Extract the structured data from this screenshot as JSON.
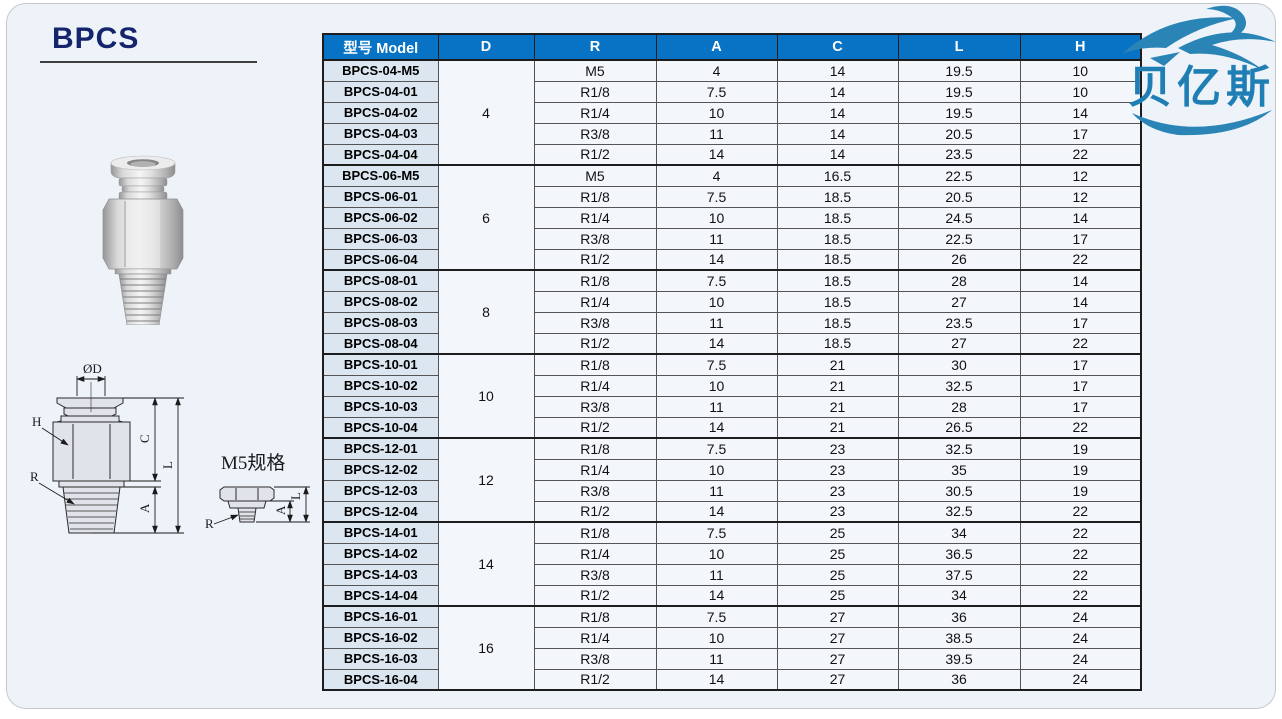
{
  "page_title": "BPCS",
  "logo": {
    "brand_text": "贝亿斯"
  },
  "colors": {
    "panel_bg": "#eef3fa",
    "header_bg": "#0873c4",
    "header_text": "#ffffff",
    "model_col_bg": "#dce6f1",
    "cell_bg": "#f3f7fc",
    "title_color": "#14246d",
    "logo_blue": "#1f7fb4",
    "border_dark": "#1d1d1d",
    "border_thin": "#555555"
  },
  "diagram": {
    "labels": {
      "od": "ØD",
      "h": "H",
      "r": "R",
      "c": "C",
      "l": "L",
      "a": "A"
    },
    "m5": {
      "title": "M5规格",
      "l": "L",
      "a": "A",
      "r": "R"
    }
  },
  "table": {
    "headers": [
      "型号 Model",
      "D",
      "R",
      "A",
      "C",
      "L",
      "H"
    ],
    "groups": [
      {
        "d": "4",
        "rows": [
          {
            "model": "BPCS-04-M5",
            "r": "M5",
            "a": "4",
            "c": "14",
            "l": "19.5",
            "h": "10"
          },
          {
            "model": "BPCS-04-01",
            "r": "R1/8",
            "a": "7.5",
            "c": "14",
            "l": "19.5",
            "h": "10"
          },
          {
            "model": "BPCS-04-02",
            "r": "R1/4",
            "a": "10",
            "c": "14",
            "l": "19.5",
            "h": "14"
          },
          {
            "model": "BPCS-04-03",
            "r": "R3/8",
            "a": "11",
            "c": "14",
            "l": "20.5",
            "h": "17"
          },
          {
            "model": "BPCS-04-04",
            "r": "R1/2",
            "a": "14",
            "c": "14",
            "l": "23.5",
            "h": "22"
          }
        ]
      },
      {
        "d": "6",
        "rows": [
          {
            "model": "BPCS-06-M5",
            "r": "M5",
            "a": "4",
            "c": "16.5",
            "l": "22.5",
            "h": "12"
          },
          {
            "model": "BPCS-06-01",
            "r": "R1/8",
            "a": "7.5",
            "c": "18.5",
            "l": "20.5",
            "h": "12"
          },
          {
            "model": "BPCS-06-02",
            "r": "R1/4",
            "a": "10",
            "c": "18.5",
            "l": "24.5",
            "h": "14"
          },
          {
            "model": "BPCS-06-03",
            "r": "R3/8",
            "a": "11",
            "c": "18.5",
            "l": "22.5",
            "h": "17"
          },
          {
            "model": "BPCS-06-04",
            "r": "R1/2",
            "a": "14",
            "c": "18.5",
            "l": "26",
            "h": "22"
          }
        ]
      },
      {
        "d": "8",
        "rows": [
          {
            "model": "BPCS-08-01",
            "r": "R1/8",
            "a": "7.5",
            "c": "18.5",
            "l": "28",
            "h": "14"
          },
          {
            "model": "BPCS-08-02",
            "r": "R1/4",
            "a": "10",
            "c": "18.5",
            "l": "27",
            "h": "14"
          },
          {
            "model": "BPCS-08-03",
            "r": "R3/8",
            "a": "11",
            "c": "18.5",
            "l": "23.5",
            "h": "17"
          },
          {
            "model": "BPCS-08-04",
            "r": "R1/2",
            "a": "14",
            "c": "18.5",
            "l": "27",
            "h": "22"
          }
        ]
      },
      {
        "d": "10",
        "rows": [
          {
            "model": "BPCS-10-01",
            "r": "R1/8",
            "a": "7.5",
            "c": "21",
            "l": "30",
            "h": "17"
          },
          {
            "model": "BPCS-10-02",
            "r": "R1/4",
            "a": "10",
            "c": "21",
            "l": "32.5",
            "h": "17"
          },
          {
            "model": "BPCS-10-03",
            "r": "R3/8",
            "a": "11",
            "c": "21",
            "l": "28",
            "h": "17"
          },
          {
            "model": "BPCS-10-04",
            "r": "R1/2",
            "a": "14",
            "c": "21",
            "l": "26.5",
            "h": "22"
          }
        ]
      },
      {
        "d": "12",
        "rows": [
          {
            "model": "BPCS-12-01",
            "r": "R1/8",
            "a": "7.5",
            "c": "23",
            "l": "32.5",
            "h": "19"
          },
          {
            "model": "BPCS-12-02",
            "r": "R1/4",
            "a": "10",
            "c": "23",
            "l": "35",
            "h": "19"
          },
          {
            "model": "BPCS-12-03",
            "r": "R3/8",
            "a": "11",
            "c": "23",
            "l": "30.5",
            "h": "19"
          },
          {
            "model": "BPCS-12-04",
            "r": "R1/2",
            "a": "14",
            "c": "23",
            "l": "32.5",
            "h": "22"
          }
        ]
      },
      {
        "d": "14",
        "rows": [
          {
            "model": "BPCS-14-01",
            "r": "R1/8",
            "a": "7.5",
            "c": "25",
            "l": "34",
            "h": "22"
          },
          {
            "model": "BPCS-14-02",
            "r": "R1/4",
            "a": "10",
            "c": "25",
            "l": "36.5",
            "h": "22"
          },
          {
            "model": "BPCS-14-03",
            "r": "R3/8",
            "a": "11",
            "c": "25",
            "l": "37.5",
            "h": "22"
          },
          {
            "model": "BPCS-14-04",
            "r": "R1/2",
            "a": "14",
            "c": "25",
            "l": "34",
            "h": "22"
          }
        ]
      },
      {
        "d": "16",
        "rows": [
          {
            "model": "BPCS-16-01",
            "r": "R1/8",
            "a": "7.5",
            "c": "27",
            "l": "36",
            "h": "24"
          },
          {
            "model": "BPCS-16-02",
            "r": "R1/4",
            "a": "10",
            "c": "27",
            "l": "38.5",
            "h": "24"
          },
          {
            "model": "BPCS-16-03",
            "r": "R3/8",
            "a": "11",
            "c": "27",
            "l": "39.5",
            "h": "24"
          },
          {
            "model": "BPCS-16-04",
            "r": "R1/2",
            "a": "14",
            "c": "27",
            "l": "36",
            "h": "24"
          }
        ]
      }
    ]
  }
}
